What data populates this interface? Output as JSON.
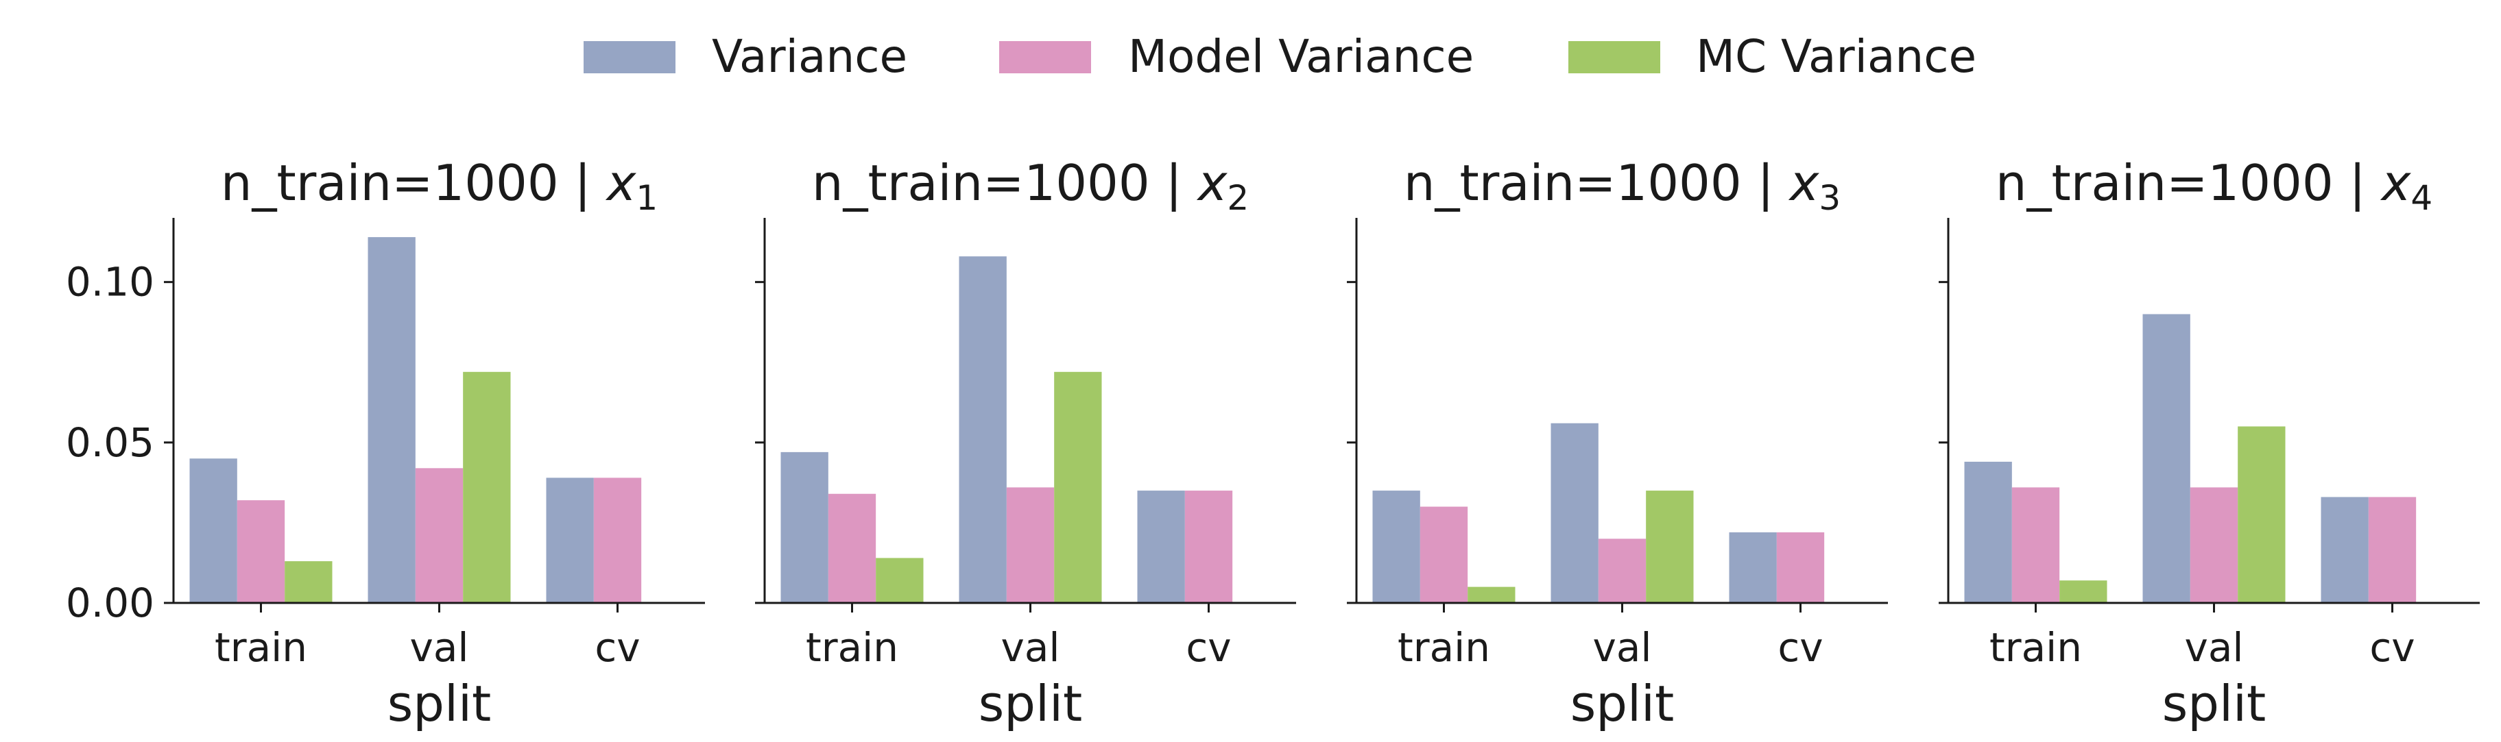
{
  "colors": {
    "Variance": "#96a5c4",
    "Model Variance": "#dd97c1",
    "MC Variance": "#a2c866",
    "axis": "#1a1a1a"
  },
  "chart_data": {
    "type": "bar",
    "legend": {
      "placement": "top-center",
      "entries": [
        "Variance",
        "Model Variance",
        "MC Variance"
      ]
    },
    "shared_y": true,
    "ylim": [
      0,
      0.12
    ],
    "yticks": [
      0.0,
      0.05,
      0.1
    ],
    "ytick_labels": [
      "0.00",
      "0.05",
      "0.10"
    ],
    "panels": [
      {
        "title_prefix": "n_train=1000 | ",
        "title_var": "x",
        "title_sub": "1",
        "xlabel": "split",
        "categories": [
          "train",
          "val",
          "cv"
        ],
        "series": [
          {
            "name": "Variance",
            "values": [
              0.045,
              0.114,
              0.039
            ]
          },
          {
            "name": "Model Variance",
            "values": [
              0.032,
              0.042,
              0.039
            ]
          },
          {
            "name": "MC Variance",
            "values": [
              0.013,
              0.072,
              0.0
            ]
          }
        ]
      },
      {
        "title_prefix": "n_train=1000 | ",
        "title_var": "x",
        "title_sub": "2",
        "xlabel": "split",
        "categories": [
          "train",
          "val",
          "cv"
        ],
        "series": [
          {
            "name": "Variance",
            "values": [
              0.047,
              0.108,
              0.035
            ]
          },
          {
            "name": "Model Variance",
            "values": [
              0.034,
              0.036,
              0.035
            ]
          },
          {
            "name": "MC Variance",
            "values": [
              0.014,
              0.072,
              0.0
            ]
          }
        ]
      },
      {
        "title_prefix": "n_train=1000 | ",
        "title_var": "x",
        "title_sub": "3",
        "xlabel": "split",
        "categories": [
          "train",
          "val",
          "cv"
        ],
        "series": [
          {
            "name": "Variance",
            "values": [
              0.035,
              0.056,
              0.022
            ]
          },
          {
            "name": "Model Variance",
            "values": [
              0.03,
              0.02,
              0.022
            ]
          },
          {
            "name": "MC Variance",
            "values": [
              0.005,
              0.035,
              0.0
            ]
          }
        ]
      },
      {
        "title_prefix": "n_train=1000 | ",
        "title_var": "x",
        "title_sub": "4",
        "xlabel": "split",
        "categories": [
          "train",
          "val",
          "cv"
        ],
        "series": [
          {
            "name": "Variance",
            "values": [
              0.044,
              0.09,
              0.033
            ]
          },
          {
            "name": "Model Variance",
            "values": [
              0.036,
              0.036,
              0.033
            ]
          },
          {
            "name": "MC Variance",
            "values": [
              0.007,
              0.055,
              0.0
            ]
          }
        ]
      }
    ]
  }
}
